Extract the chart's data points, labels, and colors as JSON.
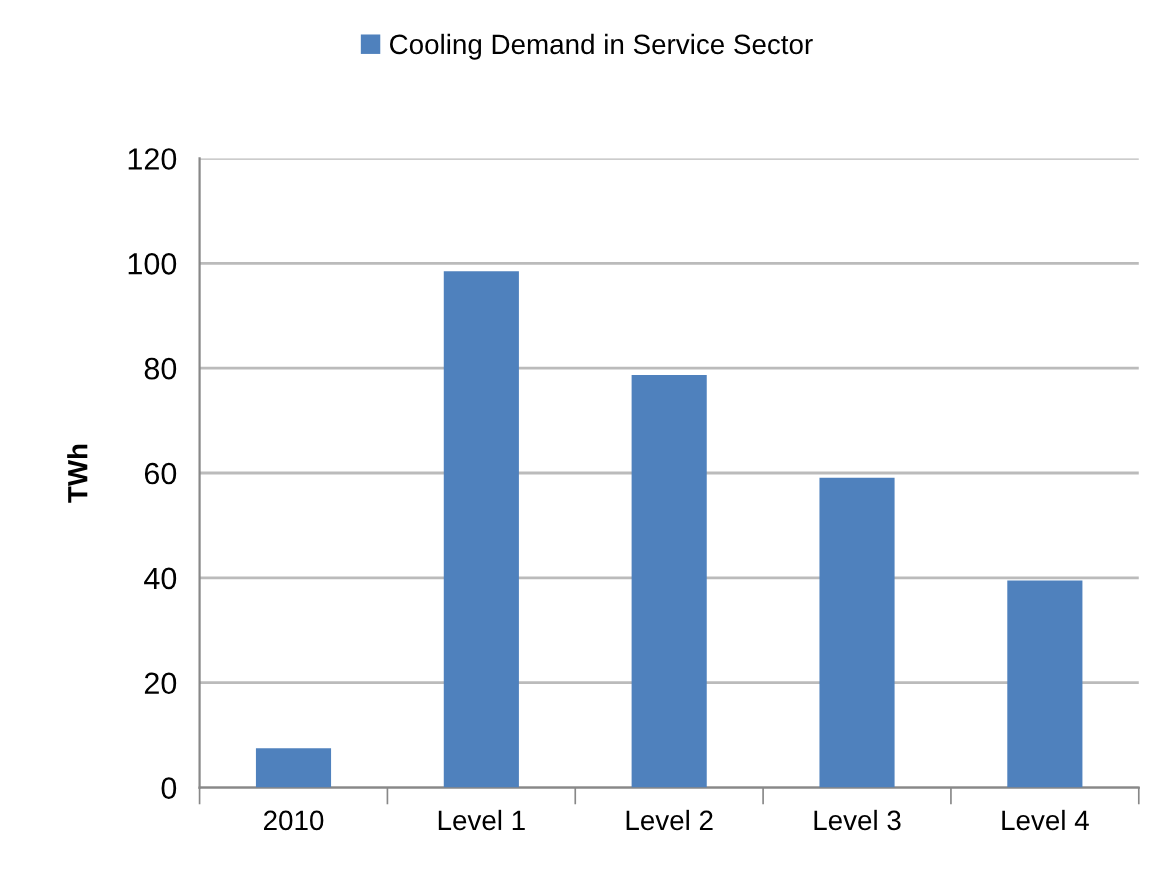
{
  "chart_data": {
    "type": "bar",
    "ylabel": "TWh",
    "categories": [
      "2010",
      "Level 1",
      "Level 2",
      "Level 3",
      "Level 4"
    ],
    "series": [
      {
        "name": "Cooling Demand in Service Sector",
        "color": "#4f81bd",
        "values": [
          7.5,
          98.5,
          78.7,
          59.1,
          39.5
        ]
      }
    ],
    "ylim": [
      0,
      120
    ],
    "yticks": [
      0,
      20,
      40,
      60,
      80,
      100,
      120
    ],
    "grid": "y",
    "legend": "top"
  }
}
